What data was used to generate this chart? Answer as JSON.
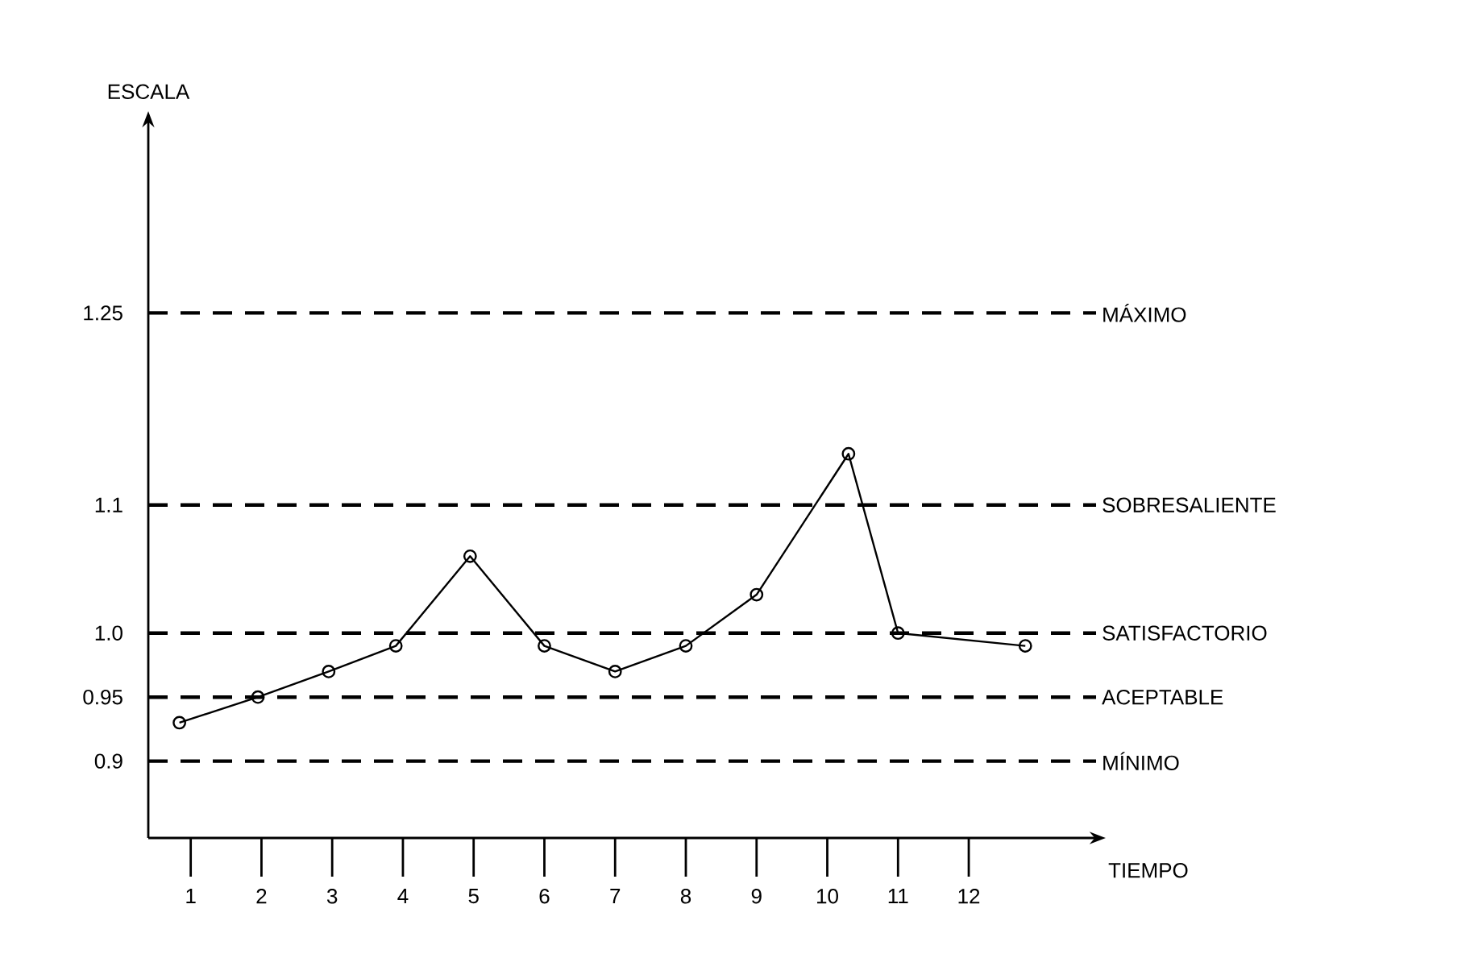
{
  "chart_data": {
    "type": "line",
    "xlabel": "TIEMPO",
    "ylabel": "ESCALA",
    "x": [
      0.84,
      1.95,
      2.95,
      3.9,
      4.95,
      6,
      7,
      8,
      9,
      10.3,
      11,
      12.8
    ],
    "values": [
      0.93,
      0.95,
      0.97,
      0.99,
      1.06,
      0.99,
      0.97,
      0.99,
      1.03,
      1.14,
      1.0,
      0.99
    ],
    "color": "#000000",
    "marker": "circle",
    "line_style": "solid",
    "xlim": [
      0.4,
      13.8
    ],
    "xticks": [
      1,
      2,
      3,
      4,
      5,
      6,
      7,
      8,
      9,
      10,
      11,
      12
    ],
    "ylim": [
      0.84,
      1.4
    ],
    "yticks": [
      0.9,
      0.95,
      {
        "value": 1.0,
        "label": "1.0"
      },
      1.1,
      1.25
    ],
    "ref_lines": [
      {
        "axis": "y",
        "value": 1.25,
        "label": "MÁXIMO",
        "color": "#000000",
        "line_style": "dashed"
      },
      {
        "axis": "y",
        "value": 1.1,
        "label": "SOBRESALIENTE",
        "color": "#000000",
        "line_style": "dashed"
      },
      {
        "axis": "y",
        "value": 1.0,
        "label": "SATISFACTORIO",
        "color": "#000000",
        "line_style": "dashed"
      },
      {
        "axis": "y",
        "value": 0.95,
        "label": "ACEPTABLE",
        "color": "#000000",
        "line_style": "dashed"
      },
      {
        "axis": "y",
        "value": 0.9,
        "label": "MÍNIMO",
        "color": "#000000",
        "line_style": "dashed"
      }
    ]
  }
}
